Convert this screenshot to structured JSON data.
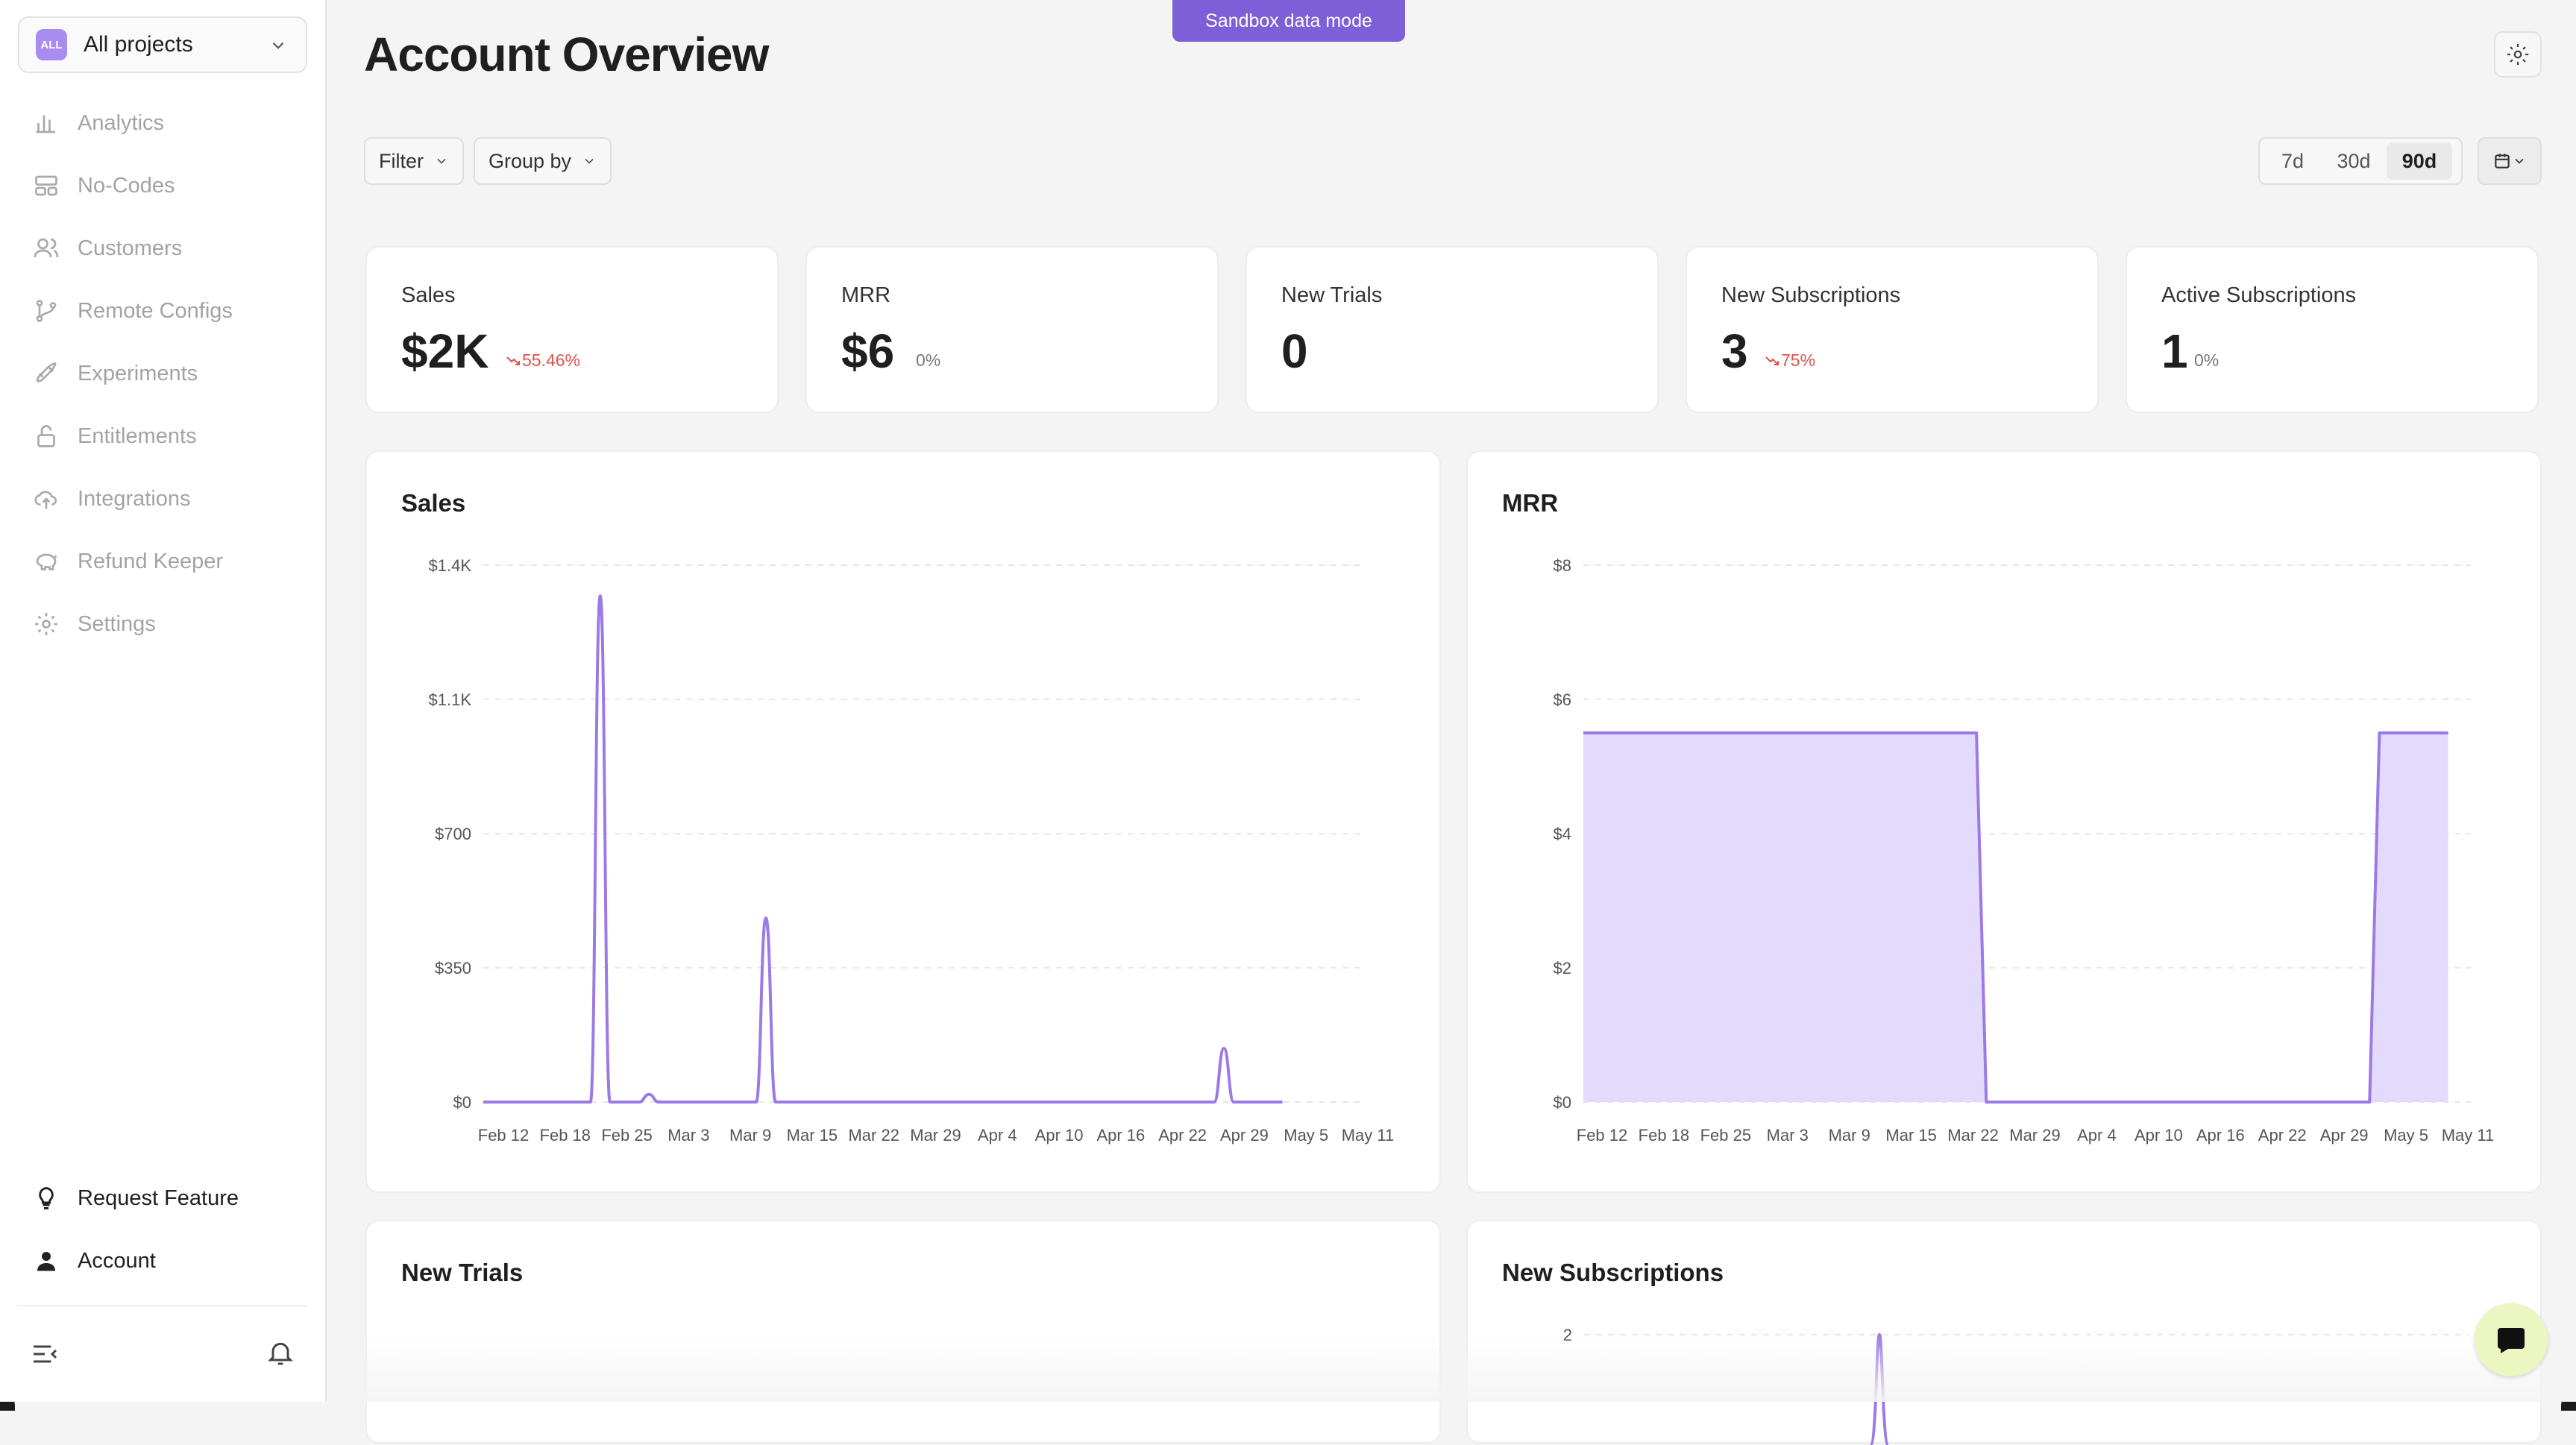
{
  "banner": {
    "label": "Sandbox data mode"
  },
  "sidebar": {
    "project": {
      "badge": "ALL",
      "label": "All projects"
    },
    "items": [
      {
        "label": "Analytics",
        "icon": "bar-chart-icon"
      },
      {
        "label": "No-Codes",
        "icon": "layout-icon"
      },
      {
        "label": "Customers",
        "icon": "users-icon"
      },
      {
        "label": "Remote Configs",
        "icon": "git-branch-icon"
      },
      {
        "label": "Experiments",
        "icon": "rocket-icon"
      },
      {
        "label": "Entitlements",
        "icon": "lock-icon"
      },
      {
        "label": "Integrations",
        "icon": "cloud-upload-icon"
      },
      {
        "label": "Refund Keeper",
        "icon": "piggy-bank-icon"
      },
      {
        "label": "Settings",
        "icon": "gear-icon"
      }
    ],
    "bottom": [
      {
        "label": "Request Feature",
        "icon": "lightbulb-icon"
      },
      {
        "label": "Account",
        "icon": "user-icon"
      }
    ]
  },
  "header": {
    "title": "Account Overview",
    "filter_label": "Filter",
    "group_by_label": "Group by",
    "ranges": [
      "7d",
      "30d",
      "90d"
    ],
    "active_range": "90d"
  },
  "kpis": [
    {
      "label": "Sales",
      "value": "$2K",
      "change": "55.46%",
      "trend": "down"
    },
    {
      "label": "MRR",
      "value": "$6",
      "change": "0%",
      "trend": "flat"
    },
    {
      "label": "New Trials",
      "value": "0",
      "change": "",
      "trend": "none"
    },
    {
      "label": "New Subscriptions",
      "value": "3",
      "change": "75%",
      "trend": "down"
    },
    {
      "label": "Active Subscriptions",
      "value": "1",
      "change": "0%",
      "trend": "flat"
    }
  ],
  "colors": {
    "accent": "#9c7ae6",
    "fill": "#e4dafc",
    "negative": "#e0524f"
  },
  "panels": {
    "sales_title": "Sales",
    "mrr_title": "MRR",
    "new_trials_title": "New Trials",
    "new_subs_title": "New Subscriptions"
  },
  "chart_data": [
    {
      "type": "line",
      "title": "Sales",
      "x_ticks": [
        "Feb 12",
        "Feb 18",
        "Feb 25",
        "Mar 3",
        "Mar 9",
        "Mar 15",
        "Mar 22",
        "Mar 29",
        "Apr 4",
        "Apr 10",
        "Apr 16",
        "Apr 22",
        "Apr 29",
        "May 5",
        "May 11"
      ],
      "y_ticks": [
        "$0",
        "$350",
        "$700",
        "$1.1K",
        "$1.4K"
      ],
      "ylim": [
        0,
        1400
      ],
      "xlim": [
        0,
        90
      ],
      "points": [
        [
          0,
          0
        ],
        [
          11,
          0
        ],
        [
          12,
          1320
        ],
        [
          13,
          0
        ],
        [
          16,
          0
        ],
        [
          17,
          20
        ],
        [
          18,
          0
        ],
        [
          28,
          0
        ],
        [
          29,
          480
        ],
        [
          30,
          0
        ],
        [
          75,
          0
        ],
        [
          76,
          140
        ],
        [
          77,
          0
        ],
        [
          82,
          0
        ]
      ]
    },
    {
      "type": "area",
      "title": "MRR",
      "x_ticks": [
        "Feb 12",
        "Feb 18",
        "Feb 25",
        "Mar 3",
        "Mar 9",
        "Mar 15",
        "Mar 22",
        "Mar 29",
        "Apr 4",
        "Apr 10",
        "Apr 16",
        "Apr 22",
        "Apr 29",
        "May 5",
        "May 11"
      ],
      "y_ticks": [
        "$0",
        "$2",
        "$4",
        "$6",
        "$8"
      ],
      "ylim": [
        0,
        8
      ],
      "xlim": [
        0,
        90
      ],
      "points": [
        [
          0,
          5.5
        ],
        [
          40,
          5.5
        ],
        [
          41,
          0
        ],
        [
          80,
          0
        ],
        [
          81,
          5.5
        ],
        [
          88,
          5.5
        ]
      ]
    },
    {
      "type": "line",
      "title": "New Subscriptions",
      "x_ticks": [],
      "y_ticks": [
        "2"
      ],
      "ylim": [
        0,
        2
      ],
      "xlim": [
        0,
        90
      ],
      "points": []
    }
  ]
}
